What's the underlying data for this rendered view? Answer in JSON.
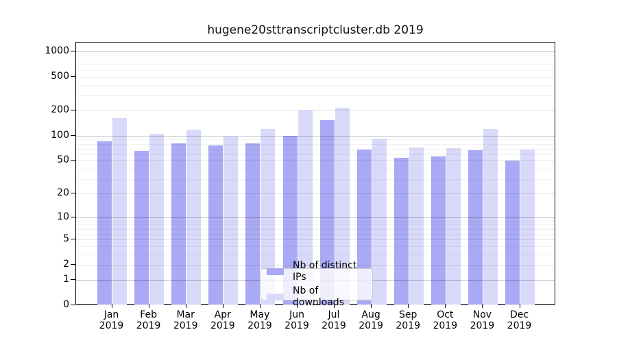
{
  "title": "hugene20sttranscriptcluster.db 2019",
  "chart_data": {
    "type": "bar",
    "title": "hugene20sttranscriptcluster.db 2019",
    "categories": [
      "Jan\n2019",
      "Feb\n2019",
      "Mar\n2019",
      "Apr\n2019",
      "May\n2019",
      "Jun\n2019",
      "Jul\n2019",
      "Aug\n2019",
      "Sep\n2019",
      "Oct\n2019",
      "Nov\n2019",
      "Dec\n2019"
    ],
    "series": [
      {
        "name": "Nb of distinct IPs",
        "color": "#a9a9f5",
        "values": [
          85,
          66,
          81,
          76,
          81,
          100,
          155,
          69,
          54,
          57,
          67,
          50
        ]
      },
      {
        "name": "Nb of downloads",
        "color": "#d9d9fa",
        "values": [
          163,
          105,
          118,
          98,
          121,
          200,
          215,
          91,
          72,
          71,
          121,
          69
        ]
      }
    ],
    "xlabel": "",
    "ylabel": "",
    "yscale": "log1p",
    "ylim": [
      0,
      1280
    ],
    "y_ticks": [
      0,
      1,
      2,
      5,
      10,
      20,
      50,
      100,
      200,
      500,
      1000
    ],
    "y_minor_ticks": [
      3,
      4,
      6,
      7,
      8,
      9,
      30,
      40,
      60,
      70,
      80,
      90,
      300,
      400,
      600,
      700,
      800,
      900
    ],
    "grid": true,
    "legend_position": "lower center"
  },
  "legend": {
    "items": [
      {
        "label": "Nb of distinct IPs",
        "swatch": "#a9a9f5"
      },
      {
        "label": "Nb of downloads",
        "swatch": "#d9d9fa"
      }
    ]
  },
  "colors": {
    "bar_distinct_ips": "#a9a9f5",
    "bar_downloads": "#d9d9fa",
    "axis": "#000000",
    "grid_major": "#c2c2c2",
    "grid_minor": "#f0f0f0",
    "background": "#ffffff"
  }
}
